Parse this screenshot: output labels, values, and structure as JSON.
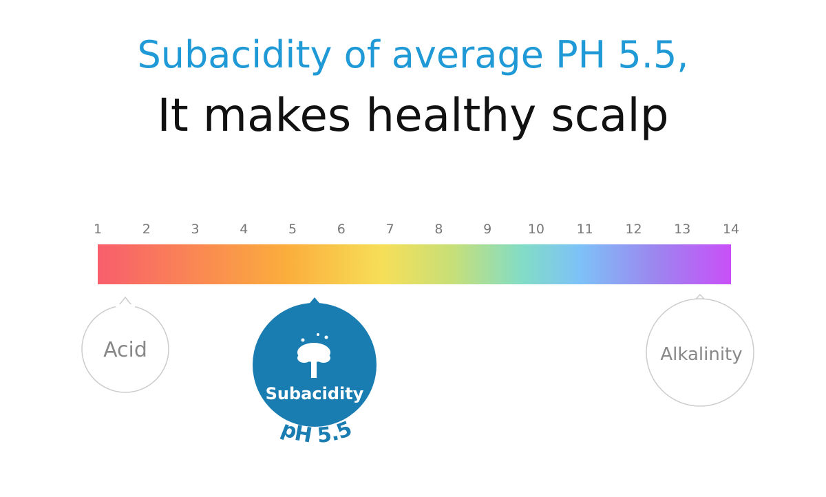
{
  "header": {
    "line1": "Subacidity of average PH 5.5,",
    "line2": "It makes healthy scalp"
  },
  "scale": {
    "ticks": [
      1,
      2,
      3,
      4,
      5,
      6,
      7,
      8,
      9,
      10,
      11,
      12,
      13,
      14
    ]
  },
  "bubbles": {
    "acid": "Acid",
    "subacidity": "Subacidity",
    "ph": "pH 5.5",
    "alkalinity": "Alkalinity"
  }
}
